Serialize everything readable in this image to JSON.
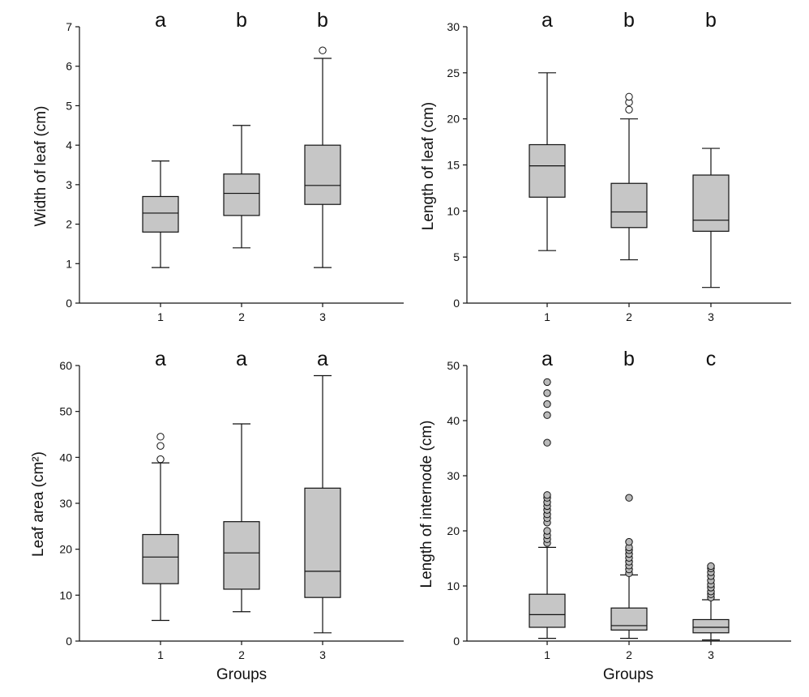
{
  "chart_data": [
    {
      "type": "box",
      "ylabel": "Width of leaf (cm)",
      "xlabel": "",
      "ylim": [
        0,
        7
      ],
      "yticks": [
        0,
        1,
        2,
        3,
        4,
        5,
        6,
        7
      ],
      "categories": [
        "1",
        "2",
        "3"
      ],
      "letters": [
        "a",
        "b",
        "b"
      ],
      "boxes": [
        {
          "min": 0.9,
          "q1": 1.8,
          "median": 2.28,
          "q3": 2.7,
          "max": 3.6,
          "outliers": []
        },
        {
          "min": 1.4,
          "q1": 2.22,
          "median": 2.78,
          "q3": 3.27,
          "max": 4.5,
          "outliers": []
        },
        {
          "min": 0.9,
          "q1": 2.5,
          "median": 2.98,
          "q3": 4.0,
          "max": 6.2,
          "outliers": [
            6.4
          ]
        }
      ]
    },
    {
      "type": "box",
      "ylabel": "Length of leaf (cm)",
      "xlabel": "",
      "ylim": [
        0,
        30
      ],
      "yticks": [
        0,
        5,
        10,
        15,
        20,
        25,
        30
      ],
      "categories": [
        "1",
        "2",
        "3"
      ],
      "letters": [
        "a",
        "b",
        "b"
      ],
      "boxes": [
        {
          "min": 5.7,
          "q1": 11.5,
          "median": 14.9,
          "q3": 17.2,
          "max": 25.0,
          "outliers": []
        },
        {
          "min": 4.7,
          "q1": 8.2,
          "median": 9.9,
          "q3": 13.0,
          "max": 20.0,
          "outliers": [
            21.0,
            21.8,
            22.4
          ]
        },
        {
          "min": 1.7,
          "q1": 7.8,
          "median": 9.0,
          "q3": 13.9,
          "max": 16.8,
          "outliers": []
        }
      ]
    },
    {
      "type": "box",
      "ylabel": "Leaf area (cm²)",
      "xlabel": "Groups",
      "ylim": [
        0,
        60
      ],
      "yticks": [
        0,
        10,
        20,
        30,
        40,
        50,
        60
      ],
      "categories": [
        "1",
        "2",
        "3"
      ],
      "letters": [
        "a",
        "a",
        "a"
      ],
      "boxes": [
        {
          "min": 4.5,
          "q1": 12.5,
          "median": 18.3,
          "q3": 23.2,
          "max": 38.8,
          "outliers": [
            39.6,
            42.5,
            44.5
          ]
        },
        {
          "min": 6.4,
          "q1": 11.3,
          "median": 19.2,
          "q3": 26.0,
          "max": 47.3,
          "outliers": []
        },
        {
          "min": 1.8,
          "q1": 9.5,
          "median": 15.2,
          "q3": 33.3,
          "max": 57.8,
          "outliers": []
        }
      ]
    },
    {
      "type": "box",
      "ylabel": "Length of internode (cm)",
      "xlabel": "Groups",
      "ylim": [
        0,
        50
      ],
      "yticks": [
        0,
        10,
        20,
        30,
        40,
        50
      ],
      "categories": [
        "1",
        "2",
        "3"
      ],
      "letters": [
        "a",
        "b",
        "c"
      ],
      "boxes": [
        {
          "min": 0.5,
          "q1": 2.5,
          "median": 4.8,
          "q3": 8.5,
          "max": 17.0,
          "outliers": [
            17.8,
            18.5,
            19.2,
            20.0,
            21.5,
            22.3,
            23.0,
            23.8,
            24.5,
            25.2,
            26.0,
            26.5,
            36.0,
            41.0,
            43.0,
            45.0,
            47.0
          ]
        },
        {
          "min": 0.5,
          "q1": 2.0,
          "median": 2.8,
          "q3": 6.0,
          "max": 12.0,
          "outliers": [
            12.3,
            13.0,
            13.7,
            14.4,
            15.1,
            15.8,
            16.5,
            17.0,
            18.0,
            26.0
          ]
        },
        {
          "min": 0.2,
          "q1": 1.5,
          "median": 2.5,
          "q3": 3.9,
          "max": 7.5,
          "outliers": [
            7.9,
            8.5,
            9.0,
            9.7,
            10.3,
            11.0,
            11.8,
            12.5,
            13.2,
            13.6
          ]
        }
      ]
    }
  ],
  "colors": {
    "box_fill": "#c6c6c6",
    "stroke": "#111111",
    "outlier_fill_open": "#ffffff",
    "outlier_fill_shaded": "#b9b9b9"
  }
}
